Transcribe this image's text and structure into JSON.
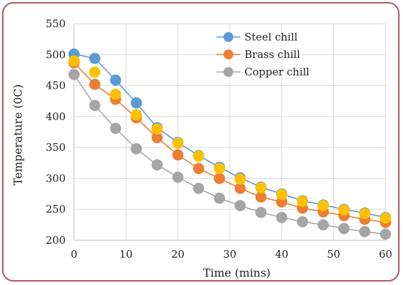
{
  "chart_data": {
    "type": "line",
    "title": "",
    "xlabel": "Time (mins)",
    "ylabel": "Temperature (0C)",
    "xlim": [
      0,
      60
    ],
    "ylim": [
      200,
      550
    ],
    "xticks": [
      0,
      10,
      20,
      30,
      40,
      50,
      60
    ],
    "yticks": [
      200,
      250,
      300,
      350,
      400,
      450,
      500,
      550
    ],
    "x": [
      0,
      4,
      8,
      12,
      16,
      20,
      24,
      28,
      32,
      36,
      40,
      44,
      48,
      52,
      56,
      60
    ],
    "grid": true,
    "legend_position": "top-right",
    "series": [
      {
        "name": "Steel chill",
        "color": "#5b9bd5",
        "values": [
          501,
          494,
          459,
          422,
          382,
          358,
          337,
          318,
          301,
          286,
          275,
          264,
          257,
          250,
          244,
          237
        ]
      },
      {
        "name": "Brass chill",
        "color": "#ed7d31",
        "values": [
          487,
          452,
          428,
          398,
          366,
          338,
          316,
          300,
          284,
          270,
          262,
          252,
          246,
          240,
          234,
          229
        ]
      },
      {
        "name": "Copper chill",
        "color": "#a5a5a5",
        "values": [
          468,
          418,
          381,
          348,
          322,
          302,
          284,
          268,
          256,
          245,
          237,
          230,
          225,
          219,
          214,
          210
        ]
      }
    ],
    "marker_overlay": {
      "color": "#ffc000",
      "values": [
        490,
        472,
        436,
        403,
        380,
        357,
        336,
        316,
        299,
        285,
        274,
        263,
        256,
        249,
        243,
        236
      ]
    }
  }
}
